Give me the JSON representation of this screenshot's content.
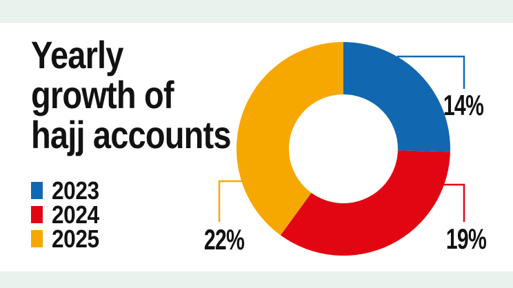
{
  "page": {
    "banner_color": "#e9f2ec",
    "background_color": "#ffffff",
    "text_color": "#121212"
  },
  "title": "Yearly\ngrowth of\nhajj accounts",
  "legend": {
    "items": [
      {
        "label": "2023",
        "color": "#1168b1"
      },
      {
        "label": "2024",
        "color": "#e20613"
      },
      {
        "label": "2025",
        "color": "#f6a800"
      }
    ]
  },
  "chart_data": {
    "type": "pie",
    "subtype": "donut",
    "title": "Yearly growth of hajj accounts",
    "categories": [
      "2023",
      "2024",
      "2025"
    ],
    "values": [
      14,
      19,
      22
    ],
    "unit": "%",
    "labels": [
      "14%",
      "19%",
      "22%"
    ],
    "colors": [
      "#1168b1",
      "#e20613",
      "#f6a800"
    ],
    "start_angle_deg": 0,
    "direction": "clockwise",
    "normalized_to_full_circle": true,
    "donut_hole_ratio": 0.51,
    "legend_position": "left",
    "callout_labels": true
  }
}
